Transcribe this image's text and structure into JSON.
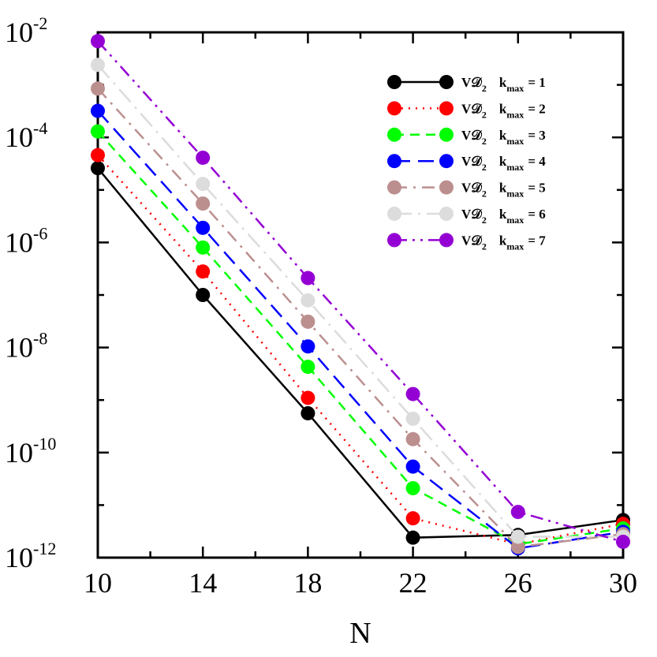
{
  "chart_data": {
    "type": "line",
    "xlabel": "N",
    "ylabel": "",
    "x": [
      10,
      14,
      18,
      22,
      26,
      30
    ],
    "xlim": [
      10,
      30
    ],
    "xticks": [
      10,
      14,
      18,
      22,
      26,
      30
    ],
    "ylim": [
      1e-12,
      0.01
    ],
    "yscale": "log",
    "yticks": [
      {
        "base": "10",
        "exp": "-2",
        "value": 0.01
      },
      {
        "base": "10",
        "exp": "-4",
        "value": 0.0001
      },
      {
        "base": "10",
        "exp": "-6",
        "value": 1e-06
      },
      {
        "base": "10",
        "exp": "-8",
        "value": 1e-08
      },
      {
        "base": "10",
        "exp": "-10",
        "value": 1e-10
      },
      {
        "base": "10",
        "exp": "-12",
        "value": 1e-12
      }
    ],
    "grid": false,
    "legend_position": "top-right",
    "series": [
      {
        "name": "VD2 kmax = 1",
        "label_main": "V𝒟",
        "label_sub": "2",
        "label_k": "k",
        "label_ksub": "max",
        "label_eq": "= 1",
        "color": "#000000",
        "dash": "solid",
        "values": [
          2.6e-05,
          1e-07,
          5.6e-10,
          2.4e-12,
          2.7e-12,
          5.2e-12
        ]
      },
      {
        "name": "VD2 kmax = 2",
        "label_main": "V𝒟",
        "label_sub": "2",
        "label_k": "k",
        "label_ksub": "max",
        "label_eq": "= 2",
        "color": "#ff0000",
        "dash": "dotted",
        "values": [
          4.6e-05,
          2.8e-07,
          1.1e-09,
          5.6e-12,
          1.8e-12,
          4.4e-12
        ]
      },
      {
        "name": "VD2 kmax = 3",
        "label_main": "V𝒟",
        "label_sub": "2",
        "label_k": "k",
        "label_ksub": "max",
        "label_eq": "= 3",
        "color": "#00ff00",
        "dash": "dashed",
        "values": [
          0.00013,
          8e-07,
          4.3e-09,
          2.1e-11,
          1.8e-12,
          3.6e-12
        ]
      },
      {
        "name": "VD2 kmax = 4",
        "label_main": "V𝒟",
        "label_sub": "2",
        "label_k": "k",
        "label_ksub": "max",
        "label_eq": "= 4",
        "color": "#0000ff",
        "dash": "long-dash",
        "values": [
          0.00032,
          1.9e-06,
          1.05e-08,
          5.4e-11,
          1.5e-12,
          3.1e-12
        ]
      },
      {
        "name": "VD2 kmax = 5",
        "label_main": "V𝒟",
        "label_sub": "2",
        "label_k": "k",
        "label_ksub": "max",
        "label_eq": "= 5",
        "color": "#bc8f8f",
        "dash": "dash-dot",
        "values": [
          0.00085,
          5.5e-06,
          3.1e-08,
          1.8e-10,
          1.6e-12,
          2.8e-12
        ]
      },
      {
        "name": "VD2 kmax = 6",
        "label_main": "V𝒟",
        "label_sub": "2",
        "label_k": "k",
        "label_ksub": "max",
        "label_eq": "= 6",
        "color": "#dcdcdc",
        "dash": "long-dash-dot",
        "values": [
          0.0024,
          1.3e-05,
          7.9e-08,
          4.4e-10,
          2.5e-12,
          2.5e-12
        ]
      },
      {
        "name": "VD2 kmax = 7",
        "label_main": "V𝒟",
        "label_sub": "2",
        "label_k": "k",
        "label_ksub": "max",
        "label_eq": "= 7",
        "color": "#9400d3",
        "dash": "dash-dot-dot",
        "values": [
          0.0068,
          4.1e-05,
          2.1e-07,
          1.3e-09,
          7.4e-12,
          2e-12
        ]
      }
    ]
  }
}
